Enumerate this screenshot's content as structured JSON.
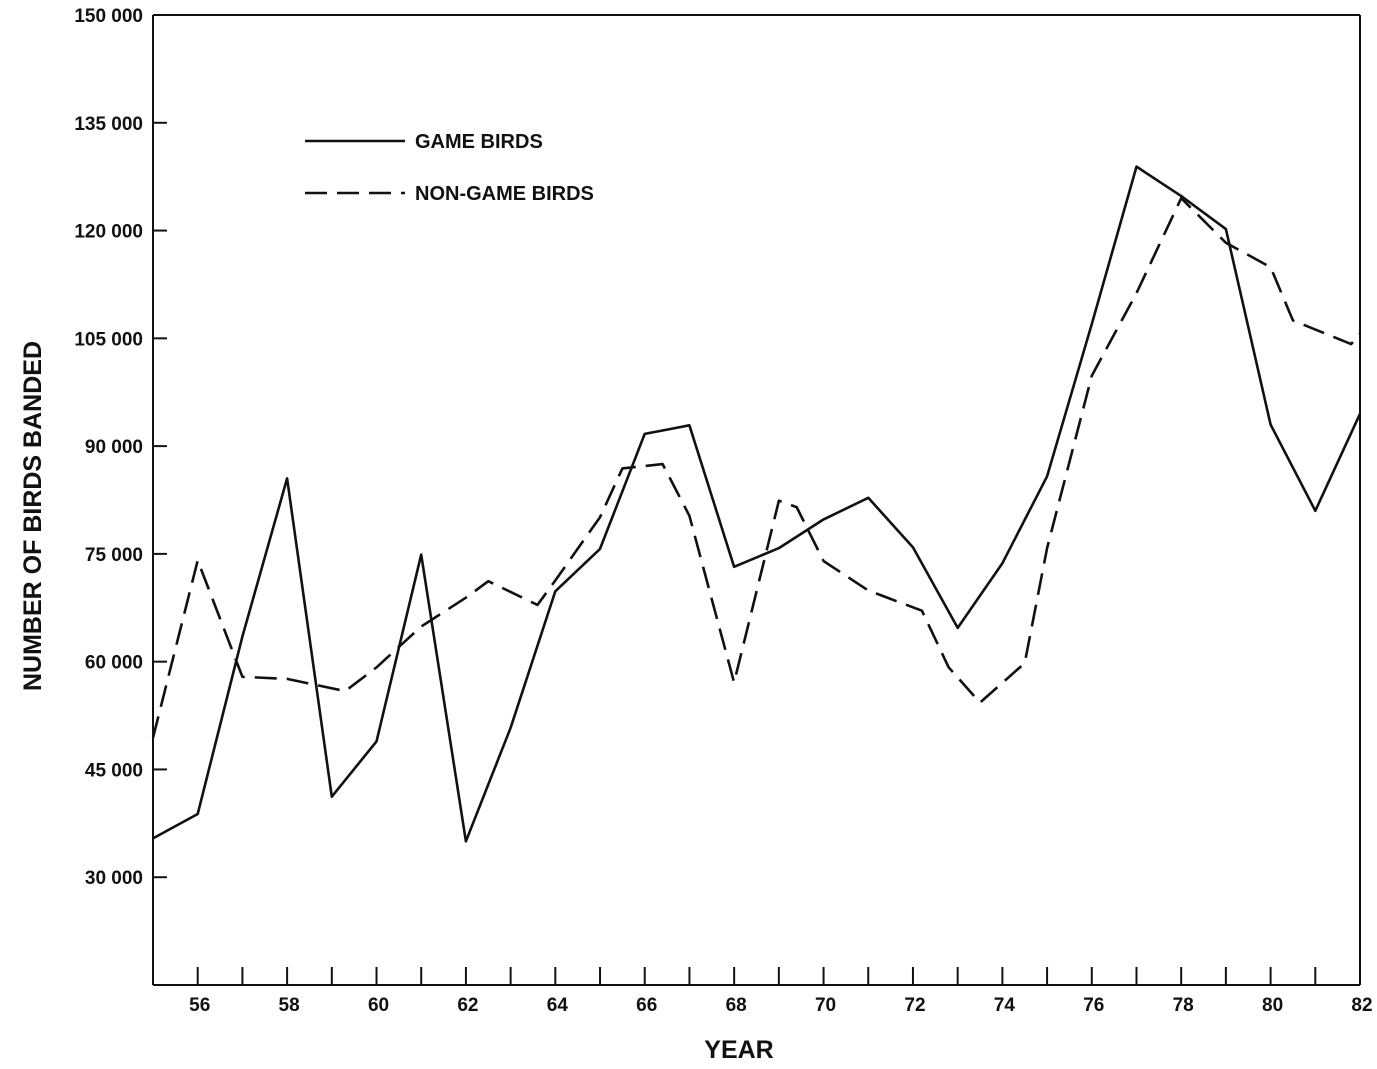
{
  "chart_data": {
    "type": "line",
    "title": "",
    "xlabel": "YEAR",
    "ylabel": "NUMBER OF BIRDS BANDED",
    "xlim": [
      1955,
      1982
    ],
    "ylim": [
      15000,
      150000
    ],
    "x_ticks": [
      1955,
      1956,
      1957,
      1958,
      1959,
      1960,
      1961,
      1962,
      1963,
      1964,
      1965,
      1966,
      1967,
      1968,
      1969,
      1970,
      1971,
      1972,
      1973,
      1974,
      1975,
      1976,
      1977,
      1978,
      1979,
      1980,
      1981,
      1982
    ],
    "x_tick_labels": [
      {
        "year": 1956,
        "label": "56"
      },
      {
        "year": 1958,
        "label": "58"
      },
      {
        "year": 1960,
        "label": "60"
      },
      {
        "year": 1962,
        "label": "62"
      },
      {
        "year": 1964,
        "label": "64"
      },
      {
        "year": 1966,
        "label": "66"
      },
      {
        "year": 1968,
        "label": "68"
      },
      {
        "year": 1970,
        "label": "70"
      },
      {
        "year": 1972,
        "label": "72"
      },
      {
        "year": 1974,
        "label": "74"
      },
      {
        "year": 1976,
        "label": "76"
      },
      {
        "year": 1978,
        "label": "78"
      },
      {
        "year": 1980,
        "label": "80"
      },
      {
        "year": 1982,
        "label": "82"
      }
    ],
    "y_ticks": [
      {
        "value": 30000,
        "label": "30 000"
      },
      {
        "value": 45000,
        "label": "45 000"
      },
      {
        "value": 60000,
        "label": "60 000"
      },
      {
        "value": 75000,
        "label": "75 000"
      },
      {
        "value": 90000,
        "label": "90 000"
      },
      {
        "value": 105000,
        "label": "105 000"
      },
      {
        "value": 120000,
        "label": "120 000"
      },
      {
        "value": 135000,
        "label": "135 000"
      },
      {
        "value": 150000,
        "label": "150 000"
      }
    ],
    "grid": false,
    "legend_position": "top-left",
    "series": [
      {
        "name": "GAME BIRDS",
        "style": "solid",
        "color": "#111111",
        "points": [
          [
            1955.0,
            35400
          ],
          [
            1956.0,
            38800
          ],
          [
            1957.0,
            63500
          ],
          [
            1958.0,
            85500
          ],
          [
            1959.0,
            41200
          ],
          [
            1960.0,
            48900
          ],
          [
            1961.0,
            74900
          ],
          [
            1962.0,
            35000
          ],
          [
            1963.0,
            50800
          ],
          [
            1964.0,
            69800
          ],
          [
            1965.0,
            75700
          ],
          [
            1966.0,
            91700
          ],
          [
            1966.5,
            92300
          ],
          [
            1967.0,
            92900
          ],
          [
            1968.0,
            73200
          ],
          [
            1969.0,
            75800
          ],
          [
            1970.0,
            79800
          ],
          [
            1971.0,
            82800
          ],
          [
            1972.0,
            75900
          ],
          [
            1973.0,
            64700
          ],
          [
            1974.0,
            73700
          ],
          [
            1975.0,
            85800
          ],
          [
            1976.0,
            107000
          ],
          [
            1977.0,
            128900
          ],
          [
            1978.0,
            124800
          ],
          [
            1979.0,
            120200
          ],
          [
            1980.0,
            93000
          ],
          [
            1981.0,
            81000
          ],
          [
            1982.0,
            94500
          ]
        ]
      },
      {
        "name": "NON-GAME BIRDS",
        "style": "dashed",
        "color": "#111111",
        "points": [
          [
            1955.0,
            49400
          ],
          [
            1956.0,
            74100
          ],
          [
            1957.0,
            57900
          ],
          [
            1958.0,
            57600
          ],
          [
            1959.3,
            55900
          ],
          [
            1960.0,
            59200
          ],
          [
            1961.0,
            64900
          ],
          [
            1962.0,
            68900
          ],
          [
            1962.5,
            71200
          ],
          [
            1963.6,
            67900
          ],
          [
            1964.0,
            71300
          ],
          [
            1965.0,
            80100
          ],
          [
            1965.5,
            86900
          ],
          [
            1966.4,
            87500
          ],
          [
            1967.0,
            80300
          ],
          [
            1968.0,
            57100
          ],
          [
            1969.0,
            82400
          ],
          [
            1969.4,
            81500
          ],
          [
            1970.0,
            74000
          ],
          [
            1971.0,
            69900
          ],
          [
            1972.2,
            67100
          ],
          [
            1972.8,
            59200
          ],
          [
            1973.5,
            54300
          ],
          [
            1974.5,
            59800
          ],
          [
            1975.0,
            75800
          ],
          [
            1976.0,
            99800
          ],
          [
            1977.0,
            111300
          ],
          [
            1978.0,
            124500
          ],
          [
            1979.0,
            118300
          ],
          [
            1980.0,
            114900
          ],
          [
            1980.5,
            107500
          ],
          [
            1981.8,
            104200
          ],
          [
            1982.0,
            105700
          ]
        ]
      }
    ]
  }
}
